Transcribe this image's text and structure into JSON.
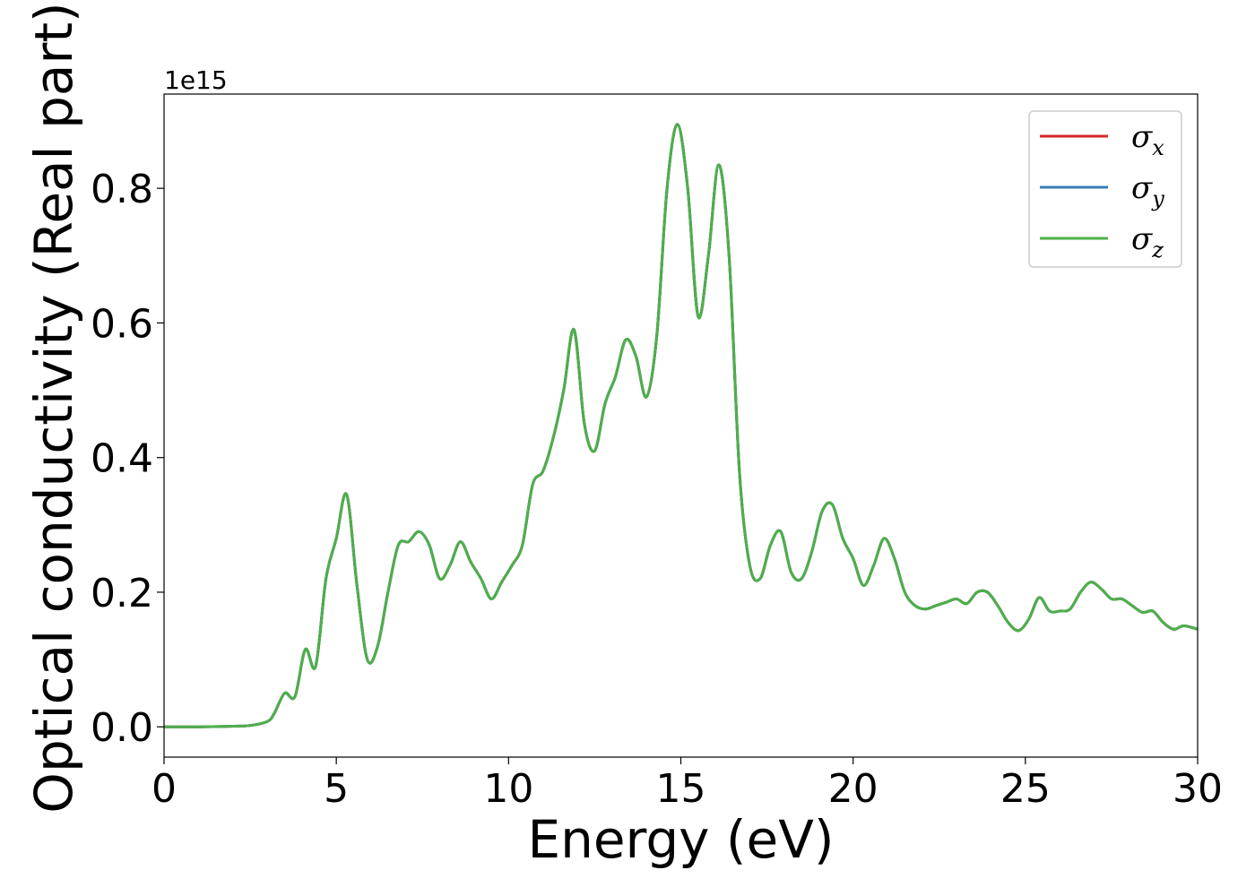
{
  "chart_data": {
    "type": "line",
    "xlabel": "Energy (eV)",
    "ylabel": "Optical conductivity (Real part)",
    "y_offset_label": "1e15",
    "xlim": [
      0,
      30
    ],
    "ylim": [
      -0.045,
      0.94
    ],
    "xticks": [
      0,
      5,
      10,
      15,
      20,
      25,
      30
    ],
    "xtick_labels": [
      "0",
      "5",
      "10",
      "15",
      "20",
      "25",
      "30"
    ],
    "yticks": [
      0.0,
      0.2,
      0.4,
      0.6,
      0.8
    ],
    "ytick_labels": [
      "0.0",
      "0.2",
      "0.4",
      "0.6",
      "0.8"
    ],
    "grid": false,
    "legend_position": "top-right",
    "x": [
      0,
      1,
      2,
      2.5,
      3,
      3.2,
      3.5,
      3.8,
      4.1,
      4.4,
      4.7,
      5.0,
      5.3,
      5.6,
      5.9,
      6.2,
      6.5,
      6.8,
      7.1,
      7.4,
      7.7,
      8.0,
      8.3,
      8.6,
      8.9,
      9.2,
      9.5,
      9.8,
      10.1,
      10.4,
      10.7,
      11.0,
      11.3,
      11.6,
      11.9,
      12.2,
      12.5,
      12.8,
      13.1,
      13.4,
      13.7,
      14.0,
      14.3,
      14.6,
      14.9,
      15.2,
      15.5,
      15.8,
      16.1,
      16.4,
      16.7,
      17.0,
      17.3,
      17.6,
      17.9,
      18.2,
      18.5,
      18.8,
      19.1,
      19.4,
      19.7,
      20.0,
      20.3,
      20.6,
      20.9,
      21.2,
      21.5,
      21.8,
      22.1,
      22.4,
      22.7,
      23.0,
      23.3,
      23.6,
      23.9,
      24.2,
      24.5,
      24.8,
      25.1,
      25.4,
      25.7,
      26.0,
      26.3,
      26.6,
      26.9,
      27.2,
      27.5,
      27.8,
      28.1,
      28.4,
      28.7,
      29.0,
      29.3,
      29.6,
      30.0
    ],
    "series": [
      {
        "name": "σx",
        "color": "#d62728",
        "values": [
          0.0,
          0.0,
          0.001,
          0.002,
          0.008,
          0.02,
          0.05,
          0.045,
          0.115,
          0.09,
          0.22,
          0.28,
          0.345,
          0.21,
          0.1,
          0.12,
          0.2,
          0.27,
          0.275,
          0.29,
          0.27,
          0.22,
          0.24,
          0.275,
          0.245,
          0.22,
          0.19,
          0.215,
          0.24,
          0.27,
          0.36,
          0.38,
          0.43,
          0.5,
          0.59,
          0.45,
          0.41,
          0.48,
          0.52,
          0.575,
          0.55,
          0.49,
          0.58,
          0.8,
          0.895,
          0.8,
          0.61,
          0.7,
          0.835,
          0.7,
          0.38,
          0.24,
          0.22,
          0.27,
          0.29,
          0.23,
          0.22,
          0.26,
          0.32,
          0.33,
          0.28,
          0.25,
          0.21,
          0.24,
          0.28,
          0.25,
          0.2,
          0.18,
          0.175,
          0.18,
          0.185,
          0.19,
          0.183,
          0.2,
          0.2,
          0.18,
          0.155,
          0.143,
          0.16,
          0.192,
          0.172,
          0.172,
          0.175,
          0.2,
          0.215,
          0.205,
          0.19,
          0.19,
          0.18,
          0.17,
          0.172,
          0.155,
          0.145,
          0.15,
          0.145
        ]
      },
      {
        "name": "σy",
        "color": "#377eb8",
        "values": [
          0.0,
          0.0,
          0.001,
          0.002,
          0.008,
          0.02,
          0.05,
          0.045,
          0.115,
          0.09,
          0.22,
          0.28,
          0.345,
          0.21,
          0.1,
          0.12,
          0.2,
          0.27,
          0.275,
          0.29,
          0.27,
          0.22,
          0.24,
          0.275,
          0.245,
          0.22,
          0.19,
          0.215,
          0.24,
          0.27,
          0.36,
          0.38,
          0.43,
          0.5,
          0.59,
          0.45,
          0.41,
          0.48,
          0.52,
          0.575,
          0.55,
          0.49,
          0.58,
          0.8,
          0.895,
          0.8,
          0.61,
          0.7,
          0.835,
          0.7,
          0.38,
          0.24,
          0.22,
          0.27,
          0.29,
          0.23,
          0.22,
          0.26,
          0.32,
          0.33,
          0.28,
          0.25,
          0.21,
          0.24,
          0.28,
          0.25,
          0.2,
          0.18,
          0.175,
          0.18,
          0.185,
          0.19,
          0.183,
          0.2,
          0.2,
          0.18,
          0.155,
          0.143,
          0.16,
          0.192,
          0.172,
          0.172,
          0.175,
          0.2,
          0.215,
          0.205,
          0.19,
          0.19,
          0.18,
          0.17,
          0.172,
          0.155,
          0.145,
          0.15,
          0.145
        ]
      },
      {
        "name": "σz",
        "color": "#4daf4a",
        "values": [
          0.0,
          0.0,
          0.001,
          0.002,
          0.008,
          0.02,
          0.05,
          0.045,
          0.115,
          0.09,
          0.22,
          0.28,
          0.345,
          0.21,
          0.1,
          0.12,
          0.2,
          0.27,
          0.275,
          0.29,
          0.27,
          0.22,
          0.24,
          0.275,
          0.245,
          0.22,
          0.19,
          0.215,
          0.24,
          0.27,
          0.36,
          0.38,
          0.43,
          0.5,
          0.59,
          0.45,
          0.41,
          0.48,
          0.52,
          0.575,
          0.55,
          0.49,
          0.58,
          0.8,
          0.895,
          0.8,
          0.61,
          0.7,
          0.835,
          0.7,
          0.38,
          0.24,
          0.22,
          0.27,
          0.29,
          0.23,
          0.22,
          0.26,
          0.32,
          0.33,
          0.28,
          0.25,
          0.21,
          0.24,
          0.28,
          0.25,
          0.2,
          0.18,
          0.175,
          0.18,
          0.185,
          0.19,
          0.183,
          0.2,
          0.2,
          0.18,
          0.155,
          0.143,
          0.16,
          0.192,
          0.172,
          0.172,
          0.175,
          0.2,
          0.215,
          0.205,
          0.19,
          0.19,
          0.18,
          0.17,
          0.172,
          0.155,
          0.145,
          0.15,
          0.145
        ]
      }
    ],
    "legend": [
      {
        "symbol": "σ",
        "sub": "x",
        "color": "#d62728"
      },
      {
        "symbol": "σ",
        "sub": "y",
        "color": "#377eb8"
      },
      {
        "symbol": "σ",
        "sub": "z",
        "color": "#4daf4a"
      }
    ]
  }
}
